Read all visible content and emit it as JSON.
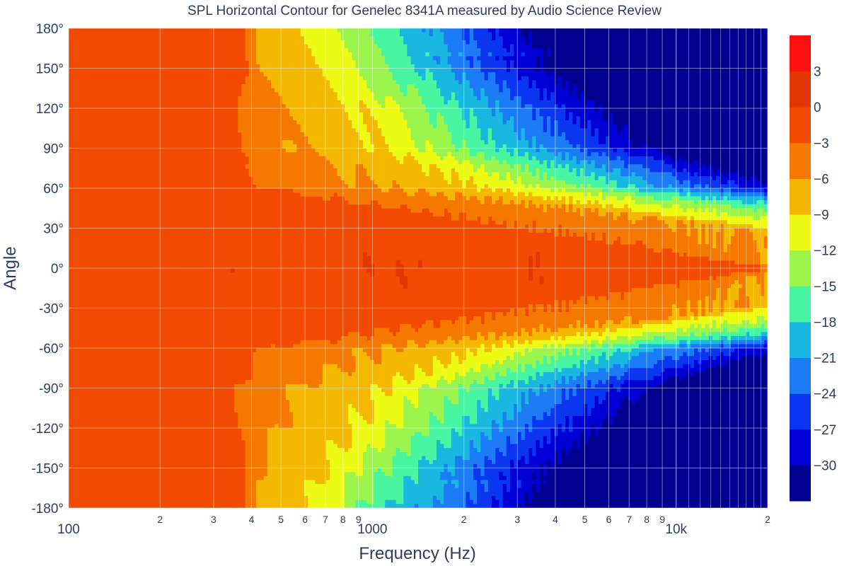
{
  "chart_data": {
    "type": "contour",
    "title": "SPL Horizontal Contour for Genelec 8341A measured by Audio Science Review",
    "xlabel": "Frequency (Hz)",
    "ylabel": "Angle",
    "x_scale": "log",
    "xlim": [
      100,
      20000
    ],
    "ylim": [
      -180,
      180
    ],
    "x_major_ticks": [
      {
        "value": 100,
        "label": "100"
      },
      {
        "value": 1000,
        "label": "1000"
      },
      {
        "value": 10000,
        "label": "10k"
      }
    ],
    "x_minor_ticks": [
      {
        "value": 200,
        "label": "2"
      },
      {
        "value": 300,
        "label": "3"
      },
      {
        "value": 400,
        "label": "4"
      },
      {
        "value": 500,
        "label": "5"
      },
      {
        "value": 600,
        "label": "6"
      },
      {
        "value": 700,
        "label": "7"
      },
      {
        "value": 800,
        "label": "8"
      },
      {
        "value": 900,
        "label": "9"
      },
      {
        "value": 2000,
        "label": "2"
      },
      {
        "value": 3000,
        "label": "3"
      },
      {
        "value": 4000,
        "label": "4"
      },
      {
        "value": 5000,
        "label": "5"
      },
      {
        "value": 6000,
        "label": "6"
      },
      {
        "value": 7000,
        "label": "7"
      },
      {
        "value": 8000,
        "label": "8"
      },
      {
        "value": 9000,
        "label": "9"
      },
      {
        "value": 20000,
        "label": "2"
      }
    ],
    "y_ticks": [
      {
        "value": 180,
        "label": "180°"
      },
      {
        "value": 150,
        "label": "150°"
      },
      {
        "value": 120,
        "label": "120°"
      },
      {
        "value": 90,
        "label": "90°"
      },
      {
        "value": 60,
        "label": "60°"
      },
      {
        "value": 30,
        "label": "30°"
      },
      {
        "value": 0,
        "label": "0°"
      },
      {
        "value": -30,
        "label": "-30°"
      },
      {
        "value": -60,
        "label": "-60°"
      },
      {
        "value": -90,
        "label": "-90°"
      },
      {
        "value": -120,
        "label": "-120°"
      },
      {
        "value": -150,
        "label": "-150°"
      },
      {
        "value": -180,
        "label": "-180°"
      }
    ],
    "z_levels": [
      3,
      0,
      -3,
      -6,
      -9,
      -12,
      -15,
      -18,
      -21,
      -24,
      -27,
      -30
    ],
    "colorbar_ticks": [
      "3",
      "0",
      "−3",
      "−6",
      "−9",
      "−12",
      "−15",
      "−18",
      "−21",
      "−24",
      "−27",
      "−30"
    ],
    "colorbar_range": [
      -33,
      6
    ],
    "colorscale": [
      "#00008f",
      "#0000d6",
      "#0a36f0",
      "#1c7cf5",
      "#18b8e0",
      "#48f5a0",
      "#9cf54c",
      "#ecfa14",
      "#f5b800",
      "#f57800",
      "#f24a00",
      "#e03800",
      "#ff1010"
    ],
    "ridges": [
      {
        "angle": 180,
        "f_deg3": 380,
        "f_deg6": 420,
        "f_deg9": 600,
        "slope": 6
      },
      {
        "angle": 150,
        "f_deg3": 380,
        "f_deg6": 420,
        "f_deg9": 700,
        "slope": 5.5
      },
      {
        "angle": 120,
        "f_deg3": 360,
        "f_deg6": 480,
        "f_deg9": 900,
        "slope": 5
      },
      {
        "angle": 90,
        "f_deg3": 350,
        "f_deg6": 550,
        "f_deg9": 1100,
        "slope": 4.5
      },
      {
        "angle": 60,
        "f_deg3": 420,
        "f_deg6": 1100,
        "f_deg9": 2400,
        "slope": 3.5
      },
      {
        "angle": 30,
        "f_deg3": 3000,
        "f_deg6": 20000,
        "f_deg9": 20000,
        "slope": 0.5
      },
      {
        "angle": 0,
        "f_deg3": 20000,
        "f_deg6": 20000,
        "f_deg9": 20000,
        "slope": 0
      }
    ]
  }
}
